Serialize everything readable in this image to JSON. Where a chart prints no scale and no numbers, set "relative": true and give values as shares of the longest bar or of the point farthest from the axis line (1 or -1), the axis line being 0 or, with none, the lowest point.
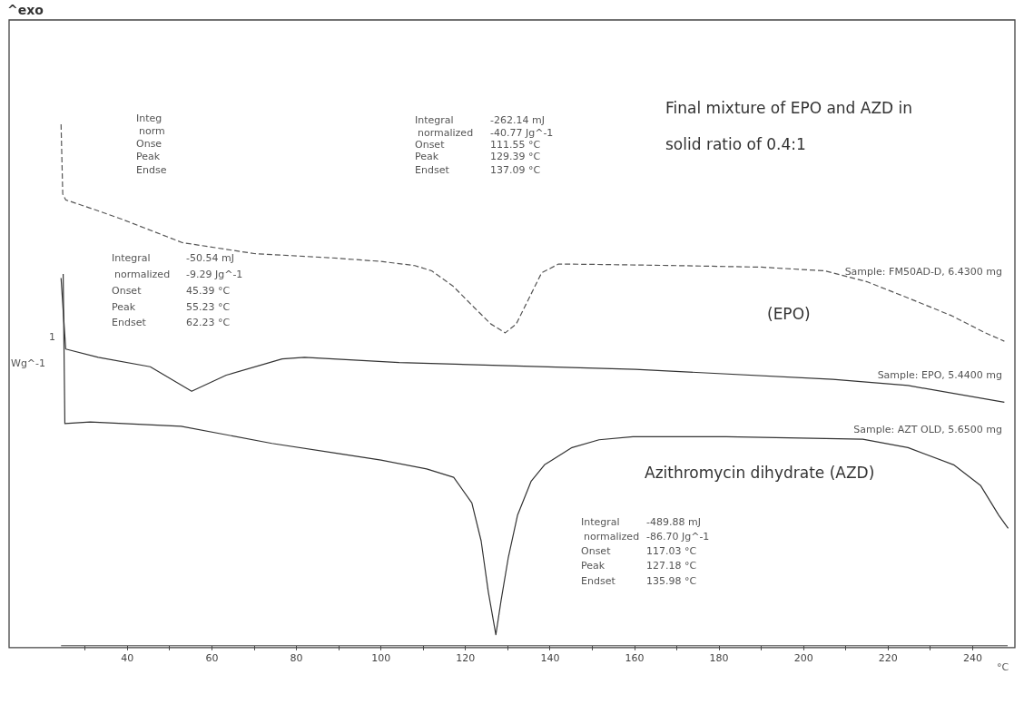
{
  "chart_data": {
    "type": "line",
    "relative": true,
    "xlabel": "°C",
    "ylabel": "Wg^-1",
    "xlim": [
      12,
      250
    ],
    "xticks": [
      {
        "value": 30,
        "label": null
      },
      40,
      {
        "value": 50,
        "label": null
      },
      60,
      {
        "value": 70,
        "label": null
      },
      80,
      {
        "value": 90,
        "label": null
      },
      100,
      {
        "value": 110,
        "label": null
      },
      120,
      {
        "value": 130,
        "label": null
      },
      140,
      {
        "value": 150,
        "label": null
      },
      160,
      {
        "value": 170,
        "label": null
      },
      180,
      {
        "value": 190,
        "label": null
      },
      200,
      {
        "value": 210,
        "label": null
      },
      220,
      {
        "value": 230,
        "label": null
      },
      240
    ],
    "grid": false,
    "legend": false,
    "marker": "none",
    "series": [
      {
        "name": "Sample: FM50AD-D, 6.4300 mg",
        "color": "#555555",
        "line_style": "dashed",
        "x": [
          24.3,
          24.7,
          25.4,
          32,
          39,
          53,
          70,
          88,
          100,
          108,
          112,
          117,
          122,
          126,
          129.4,
          132,
          135,
          138,
          142,
          153,
          170,
          190,
          205,
          215,
          225,
          235,
          243,
          247.5
        ],
        "values": [
          1.0,
          0.866,
          0.855,
          0.837,
          0.817,
          0.773,
          0.752,
          0.744,
          0.737,
          0.729,
          0.719,
          0.69,
          0.649,
          0.617,
          0.6,
          0.617,
          0.666,
          0.715,
          0.732,
          0.731,
          0.729,
          0.726,
          0.719,
          0.698,
          0.666,
          0.633,
          0.6,
          0.584
        ]
      },
      {
        "name": "Sample: EPO, 5.4400 mg",
        "color": "#333333",
        "line_style": "solid",
        "x": [
          24.3,
          25.4,
          33.1,
          45.4,
          55.2,
          63.4,
          76.6,
          81.9,
          104.3,
          130.1,
          160.2,
          206.9,
          224.7,
          247.5
        ],
        "values": [
          0.705,
          0.569,
          0.553,
          0.535,
          0.488,
          0.519,
          0.55,
          0.553,
          0.543,
          0.537,
          0.53,
          0.511,
          0.499,
          0.467
        ]
      },
      {
        "name": "Sample: AZT OLD, 5.6500 mg",
        "color": "#333333",
        "line_style": "solid",
        "x": [
          24.8,
          25.2,
          31.2,
          52.7,
          74.2,
          89.5,
          100,
          110.8,
          117.2,
          121.5,
          123.7,
          125.4,
          127.18,
          128.4,
          130.1,
          132.3,
          135.5,
          138.7,
          145.2,
          151.6,
          159.6,
          181.7,
          214,
          224.7,
          235.5,
          241.9,
          246.2,
          248.4
        ],
        "values": [
          0.713,
          0.426,
          0.429,
          0.421,
          0.388,
          0.369,
          0.356,
          0.339,
          0.323,
          0.274,
          0.201,
          0.103,
          0.021,
          0.086,
          0.168,
          0.25,
          0.315,
          0.347,
          0.38,
          0.395,
          0.401,
          0.401,
          0.396,
          0.38,
          0.347,
          0.307,
          0.25,
          0.225
        ]
      }
    ],
    "annotations": [
      "^exo",
      "1",
      "Final mixture of EPO and AZD in",
      "solid ratio of 0.4:1",
      "(EPO)",
      "Azithromycin dihydrate (AZD)",
      "Integ",
      "norm",
      "Onse",
      "Peak",
      "Endse",
      "Integral",
      "normalized",
      "Onset",
      "Peak",
      "Endset",
      "-262.14 mJ",
      "-40.77 Jg^-1",
      "111.55 °C",
      "129.39 °C",
      "137.09 °C",
      "Integral",
      "normalized",
      "Onset",
      "Peak",
      "Endset",
      "-50.54 mJ",
      "-9.29 Jg^-1",
      "45.39 °C",
      "55.23 °C",
      "62.23 °C",
      "Integral",
      "normalized",
      "Onset",
      "Peak",
      "Endset",
      "-489.88 mJ",
      "-86.70 Jg^-1",
      "117.03 °C",
      "127.18 °C",
      "135.98 °C"
    ]
  }
}
